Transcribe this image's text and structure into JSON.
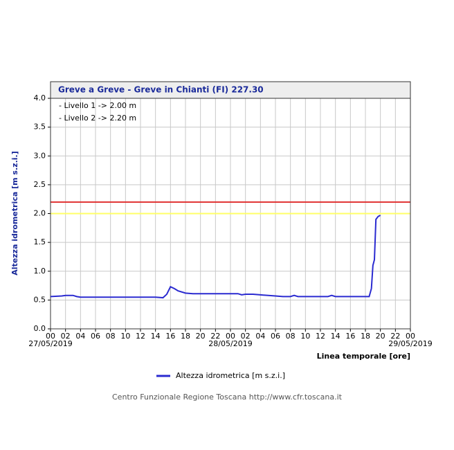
{
  "chart_data": {
    "type": "line",
    "title": "Greve a Greve - Greve in Chianti (FI) 227.30",
    "y_label": "Altezza idrometrica [m s.z.i.]",
    "x_label": "Linea temporale [ore]",
    "footer": "Centro Funzionale Regione Toscana http://www.cfr.toscana.it",
    "xlim": [
      0,
      48
    ],
    "ylim": [
      0,
      4
    ],
    "xticks": [
      {
        "value": 0,
        "label": "00"
      },
      {
        "value": 2,
        "label": "02"
      },
      {
        "value": 4,
        "label": "04"
      },
      {
        "value": 6,
        "label": "06"
      },
      {
        "value": 8,
        "label": "08"
      },
      10,
      12,
      14,
      16,
      18,
      20,
      22,
      {
        "value": 24,
        "label": "00"
      },
      {
        "value": 26,
        "label": "02"
      },
      {
        "value": 28,
        "label": "04"
      },
      {
        "value": 30,
        "label": "06"
      },
      {
        "value": 32,
        "label": "08"
      },
      {
        "value": 34,
        "label": "10"
      },
      {
        "value": 36,
        "label": "12"
      },
      {
        "value": 38,
        "label": "14"
      },
      {
        "value": 40,
        "label": "16"
      },
      {
        "value": 42,
        "label": "18"
      },
      {
        "value": 44,
        "label": "20"
      },
      {
        "value": 46,
        "label": "22"
      },
      {
        "value": 48,
        "label": "00"
      }
    ],
    "date_labels": [
      {
        "value": 0,
        "label": "27/05/2019"
      },
      {
        "value": 24,
        "label": "28/05/2019"
      },
      {
        "value": 48,
        "label": "29/05/2019"
      }
    ],
    "yticks": [
      {
        "value": 0,
        "label": "0.0"
      },
      0.5,
      {
        "value": 1,
        "label": "1.0"
      },
      1.5,
      {
        "value": 2,
        "label": "2.0"
      },
      2.5,
      {
        "value": 3,
        "label": "3.0"
      },
      3.5,
      {
        "value": 4,
        "label": "4.0"
      }
    ],
    "grid": true,
    "thresholds": [
      {
        "label": "- Livello 1 -> 2.00 m",
        "value": 2.0,
        "color": "#ffff66"
      },
      {
        "label": "- Livello 2 -> 2.20 m",
        "value": 2.2,
        "color": "#e03030"
      }
    ],
    "series": [
      {
        "name": "Altezza idrometrica [m s.z.i.]",
        "color": "#2a2ad0",
        "x": [
          0,
          1.5,
          2,
          3,
          3.5,
          4,
          10,
          14,
          15,
          15.5,
          16,
          16.5,
          17,
          18,
          19,
          22,
          24,
          25,
          25.5,
          26,
          27,
          28,
          30,
          31,
          32,
          32.5,
          33,
          36,
          37,
          37.5,
          38,
          42.5,
          42.8,
          43,
          43.2,
          43.4,
          43.7,
          44
        ],
        "values": [
          0.56,
          0.57,
          0.58,
          0.58,
          0.56,
          0.55,
          0.55,
          0.55,
          0.54,
          0.6,
          0.73,
          0.7,
          0.66,
          0.62,
          0.61,
          0.61,
          0.61,
          0.61,
          0.59,
          0.6,
          0.6,
          0.59,
          0.57,
          0.56,
          0.56,
          0.58,
          0.56,
          0.56,
          0.56,
          0.58,
          0.56,
          0.56,
          0.7,
          1.1,
          1.2,
          1.9,
          1.95,
          1.97
        ]
      }
    ]
  }
}
